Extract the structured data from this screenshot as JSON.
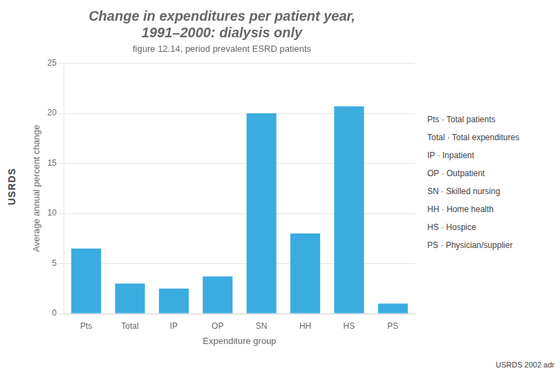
{
  "chart_data": {
    "type": "bar",
    "title": [
      "Change in expenditures per patient year,",
      "1991–2000: dialysis only"
    ],
    "subtitle": "figure 12.14, period prevalent ESRD patients",
    "xlabel": "Expenditure group",
    "ylabel": "Average annual percent change",
    "categories": [
      "Pts",
      "Total",
      "IP",
      "OP",
      "SN",
      "HH",
      "HS",
      "PS"
    ],
    "values": [
      6.5,
      3.0,
      2.5,
      3.7,
      20.0,
      8.0,
      20.7,
      1.0
    ],
    "color": "#3aace0",
    "ylim": [
      0,
      25
    ],
    "yticks": [
      0,
      5,
      10,
      15,
      20,
      25
    ],
    "grid": true,
    "annotations": [
      "USRDS",
      "Pts · Total patients",
      "Total · Total expenditures",
      "IP · Inpatient",
      "OP · Outpatient",
      "SN · Skilled nursing",
      "HH · Home health",
      "HS · Hospice",
      "PS · Physician/supplier",
      "USRDS 2002 adr"
    ]
  }
}
